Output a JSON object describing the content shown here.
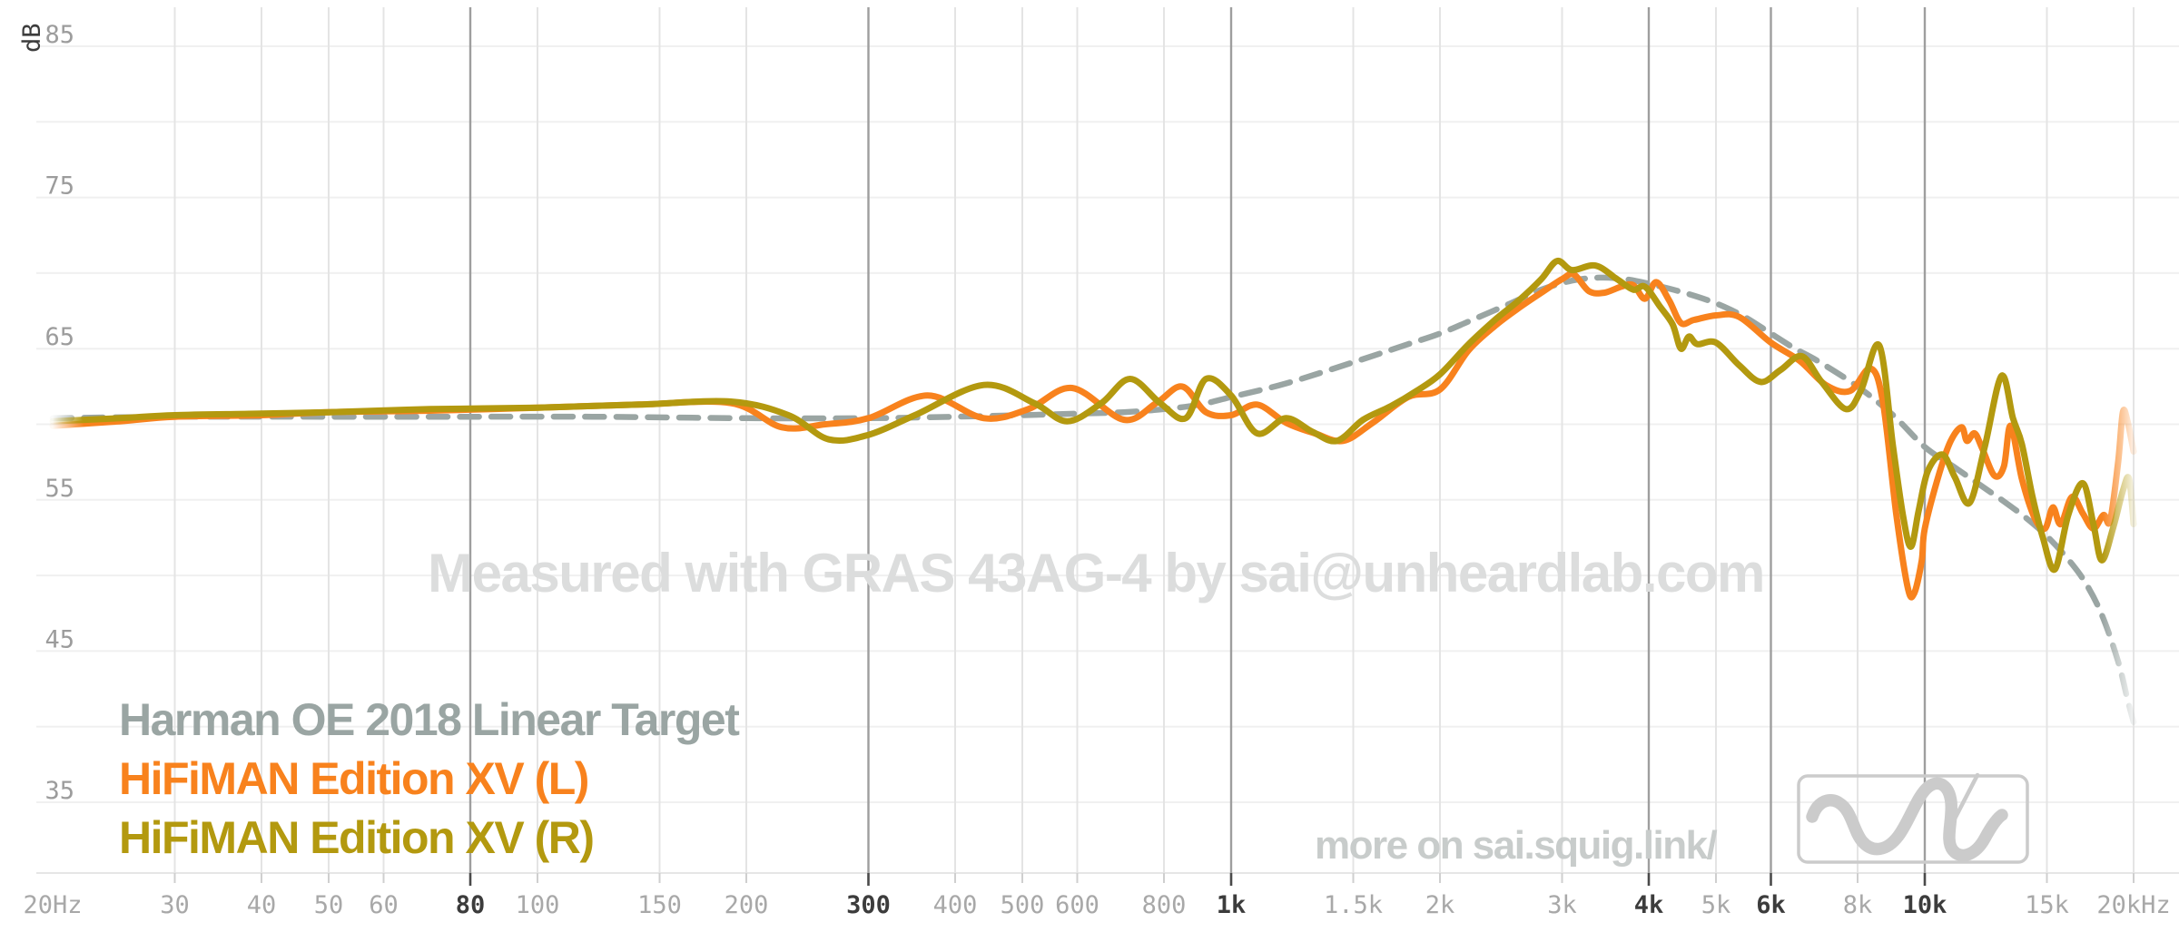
{
  "watermark": "Measured with GRAS 43AG-4 by sai@unheardlab.com",
  "footer": {
    "link_text": "more on sai.squig.link/"
  },
  "legend": {
    "items": [
      {
        "label": "Harman OE 2018 Linear Target",
        "color": "#9aa5a3"
      },
      {
        "label": "HiFiMAN Edition XV (L)",
        "color": "#f8821d"
      },
      {
        "label": "HiFiMAN Edition XV (R)",
        "color": "#b3990f"
      }
    ]
  },
  "axis": {
    "y_unit_label": "dB",
    "y_labels": [
      85,
      75,
      65,
      55,
      45,
      35
    ],
    "y_gridlines_db": [
      85,
      80,
      75,
      70,
      65,
      60,
      55,
      50,
      45,
      40,
      35
    ],
    "x_ticks": [
      {
        "label": "20Hz",
        "f": 20,
        "strong": false
      },
      {
        "label": "30",
        "f": 30,
        "strong": false
      },
      {
        "label": "40",
        "f": 40,
        "strong": false
      },
      {
        "label": "50",
        "f": 50,
        "strong": false
      },
      {
        "label": "60",
        "f": 60,
        "strong": false
      },
      {
        "label": "80",
        "f": 80,
        "strong": true
      },
      {
        "label": "100",
        "f": 100,
        "strong": false
      },
      {
        "label": "150",
        "f": 150,
        "strong": false
      },
      {
        "label": "200",
        "f": 200,
        "strong": false
      },
      {
        "label": "300",
        "f": 300,
        "strong": true
      },
      {
        "label": "400",
        "f": 400,
        "strong": false
      },
      {
        "label": "500",
        "f": 500,
        "strong": false
      },
      {
        "label": "600",
        "f": 600,
        "strong": false
      },
      {
        "label": "800",
        "f": 800,
        "strong": false
      },
      {
        "label": "1k",
        "f": 1000,
        "strong": true
      },
      {
        "label": "1.5k",
        "f": 1500,
        "strong": false
      },
      {
        "label": "2k",
        "f": 2000,
        "strong": false
      },
      {
        "label": "3k",
        "f": 3000,
        "strong": false
      },
      {
        "label": "4k",
        "f": 4000,
        "strong": true
      },
      {
        "label": "5k",
        "f": 5000,
        "strong": false
      },
      {
        "label": "6k",
        "f": 6000,
        "strong": true
      },
      {
        "label": "8k",
        "f": 8000,
        "strong": false
      },
      {
        "label": "10k",
        "f": 10000,
        "strong": true
      },
      {
        "label": "15k",
        "f": 15000,
        "strong": false
      },
      {
        "label": "20kHz",
        "f": 20000,
        "strong": false
      }
    ]
  },
  "colors": {
    "grid_light_v": "#e4e4e4",
    "grid_strong_v": "#9e9e9e",
    "grid_h": "#f0f0f0",
    "axis_line": "#e6e6e6",
    "tick_light": "#cfcfcf",
    "tick_strong": "#4a4a4a",
    "xlabel_light": "#a8a8a8",
    "xlabel_strong": "#3c3c3c",
    "ylabel": "#9c9c9c",
    "y_unit": "#3c3c3c",
    "watermark": "#dcdddd",
    "footer_text": "#c8cccb",
    "logo_gray": "#cbcbcb"
  },
  "chart_data": {
    "type": "line",
    "x_scale": "log",
    "x_range_hz": [
      20,
      20000
    ],
    "y_range_db": [
      30,
      88
    ],
    "xlabel": "frequency (Hz)",
    "ylabel": "dB",
    "grid": true,
    "legend_position": "bottom-left",
    "strong_gridlines_hz": [
      80,
      300,
      1000,
      4000,
      6000,
      10000
    ],
    "series": [
      {
        "name": "Harman OE 2018 Linear Target",
        "color": "#9aa5a3",
        "style": "dashed",
        "points": [
          [
            20,
            60.4
          ],
          [
            30,
            60.5
          ],
          [
            50,
            60.5
          ],
          [
            80,
            60.5
          ],
          [
            120,
            60.5
          ],
          [
            200,
            60.4
          ],
          [
            300,
            60.4
          ],
          [
            400,
            60.5
          ],
          [
            500,
            60.6
          ],
          [
            600,
            60.7
          ],
          [
            700,
            60.8
          ],
          [
            800,
            61.0
          ],
          [
            900,
            61.3
          ],
          [
            1000,
            61.8
          ],
          [
            1200,
            62.7
          ],
          [
            1500,
            64.1
          ],
          [
            1800,
            65.3
          ],
          [
            2000,
            66.0
          ],
          [
            2200,
            66.8
          ],
          [
            2500,
            67.9
          ],
          [
            2800,
            68.9
          ],
          [
            3100,
            69.5
          ],
          [
            3400,
            69.7
          ],
          [
            3700,
            69.6
          ],
          [
            4000,
            69.3
          ],
          [
            4500,
            68.7
          ],
          [
            5000,
            68.0
          ],
          [
            5500,
            67.1
          ],
          [
            6000,
            66.0
          ],
          [
            6500,
            65.0
          ],
          [
            7000,
            64.2
          ],
          [
            8000,
            62.5
          ],
          [
            9000,
            60.6
          ],
          [
            10000,
            58.5
          ],
          [
            11000,
            57.2
          ],
          [
            12000,
            56.0
          ],
          [
            13000,
            54.9
          ],
          [
            14000,
            53.8
          ],
          [
            15000,
            52.6
          ],
          [
            16000,
            51.2
          ],
          [
            17000,
            49.6
          ],
          [
            18000,
            47.4
          ],
          [
            19000,
            44.3
          ],
          [
            19600,
            41.8
          ],
          [
            20000,
            40.3
          ]
        ]
      },
      {
        "name": "HiFiMAN Edition XV (L)",
        "color": "#f8821d",
        "style": "solid",
        "points": [
          [
            20,
            59.9
          ],
          [
            25,
            60.2
          ],
          [
            30,
            60.5
          ],
          [
            40,
            60.6
          ],
          [
            50,
            60.8
          ],
          [
            70,
            60.9
          ],
          [
            100,
            61.1
          ],
          [
            140,
            61.3
          ],
          [
            190,
            61.4
          ],
          [
            225,
            59.8
          ],
          [
            260,
            60.0
          ],
          [
            300,
            60.4
          ],
          [
            365,
            61.9
          ],
          [
            440,
            60.4
          ],
          [
            510,
            61.0
          ],
          [
            590,
            62.4
          ],
          [
            700,
            60.3
          ],
          [
            780,
            61.4
          ],
          [
            850,
            62.5
          ],
          [
            920,
            60.8
          ],
          [
            1000,
            60.6
          ],
          [
            1090,
            61.3
          ],
          [
            1200,
            60.1
          ],
          [
            1320,
            59.4
          ],
          [
            1450,
            58.9
          ],
          [
            1600,
            60.1
          ],
          [
            1800,
            61.8
          ],
          [
            2000,
            62.3
          ],
          [
            2200,
            64.9
          ],
          [
            2400,
            66.5
          ],
          [
            2600,
            67.7
          ],
          [
            2800,
            68.7
          ],
          [
            3000,
            69.6
          ],
          [
            3120,
            69.9
          ],
          [
            3280,
            68.8
          ],
          [
            3450,
            68.7
          ],
          [
            3650,
            69.1
          ],
          [
            3800,
            69.2
          ],
          [
            3950,
            68.3
          ],
          [
            4100,
            69.4
          ],
          [
            4280,
            68.2
          ],
          [
            4450,
            66.7
          ],
          [
            4650,
            66.9
          ],
          [
            5000,
            67.2
          ],
          [
            5400,
            67.1
          ],
          [
            6000,
            65.4
          ],
          [
            6600,
            64.2
          ],
          [
            7200,
            62.6
          ],
          [
            7800,
            62.2
          ],
          [
            8350,
            63.7
          ],
          [
            8700,
            61.5
          ],
          [
            9100,
            54.0
          ],
          [
            9450,
            49.2
          ],
          [
            9650,
            48.8
          ],
          [
            9900,
            51.0
          ],
          [
            10000,
            53.1
          ],
          [
            10500,
            56.8
          ],
          [
            10900,
            58.9
          ],
          [
            11300,
            59.8
          ],
          [
            11500,
            58.9
          ],
          [
            11800,
            59.4
          ],
          [
            12100,
            58.4
          ],
          [
            12600,
            56.6
          ],
          [
            13000,
            57.2
          ],
          [
            13300,
            59.9
          ],
          [
            13800,
            56.4
          ],
          [
            14400,
            53.8
          ],
          [
            14900,
            53.1
          ],
          [
            15300,
            54.5
          ],
          [
            15700,
            53.4
          ],
          [
            16300,
            55.2
          ],
          [
            16900,
            54.1
          ],
          [
            17500,
            53.1
          ],
          [
            18100,
            54.0
          ],
          [
            18500,
            53.6
          ],
          [
            19000,
            57.5
          ],
          [
            19300,
            60.8
          ],
          [
            19600,
            60.2
          ],
          [
            20000,
            58.2
          ]
        ]
      },
      {
        "name": "HiFiMAN Edition XV (R)",
        "color": "#b3990f",
        "style": "solid",
        "points": [
          [
            20,
            60.2
          ],
          [
            25,
            60.4
          ],
          [
            30,
            60.6
          ],
          [
            40,
            60.7
          ],
          [
            50,
            60.8
          ],
          [
            70,
            61.0
          ],
          [
            100,
            61.1
          ],
          [
            140,
            61.3
          ],
          [
            190,
            61.5
          ],
          [
            230,
            60.6
          ],
          [
            263,
            59.0
          ],
          [
            300,
            59.3
          ],
          [
            350,
            60.6
          ],
          [
            440,
            62.6
          ],
          [
            520,
            61.4
          ],
          [
            580,
            60.2
          ],
          [
            650,
            61.4
          ],
          [
            715,
            63.0
          ],
          [
            790,
            61.4
          ],
          [
            860,
            60.4
          ],
          [
            920,
            63.0
          ],
          [
            1000,
            61.9
          ],
          [
            1090,
            59.4
          ],
          [
            1200,
            60.4
          ],
          [
            1310,
            59.5
          ],
          [
            1420,
            58.9
          ],
          [
            1550,
            60.3
          ],
          [
            1700,
            61.2
          ],
          [
            1850,
            62.2
          ],
          [
            2000,
            63.3
          ],
          [
            2200,
            65.3
          ],
          [
            2400,
            66.9
          ],
          [
            2600,
            68.2
          ],
          [
            2800,
            69.6
          ],
          [
            2950,
            70.8
          ],
          [
            3100,
            70.2
          ],
          [
            3350,
            70.5
          ],
          [
            3600,
            69.6
          ],
          [
            3800,
            68.9
          ],
          [
            3950,
            69.1
          ],
          [
            4150,
            67.8
          ],
          [
            4330,
            66.6
          ],
          [
            4450,
            65.0
          ],
          [
            4570,
            65.8
          ],
          [
            4700,
            65.3
          ],
          [
            5000,
            65.4
          ],
          [
            5400,
            63.9
          ],
          [
            5800,
            62.8
          ],
          [
            6200,
            63.6
          ],
          [
            6650,
            64.5
          ],
          [
            7100,
            62.8
          ],
          [
            7700,
            61.0
          ],
          [
            8100,
            62.3
          ],
          [
            8600,
            65.2
          ],
          [
            9000,
            58.5
          ],
          [
            9300,
            54.0
          ],
          [
            9550,
            51.9
          ],
          [
            9800,
            54.3
          ],
          [
            10100,
            56.9
          ],
          [
            10600,
            58.0
          ],
          [
            11050,
            56.5
          ],
          [
            11600,
            54.8
          ],
          [
            12200,
            58.5
          ],
          [
            12900,
            63.2
          ],
          [
            13400,
            60.4
          ],
          [
            13800,
            58.7
          ],
          [
            14300,
            55.2
          ],
          [
            14800,
            52.5
          ],
          [
            15400,
            50.4
          ],
          [
            16100,
            54.0
          ],
          [
            16900,
            56.1
          ],
          [
            17500,
            53.4
          ],
          [
            18000,
            51.0
          ],
          [
            18700,
            53.2
          ],
          [
            19300,
            55.6
          ],
          [
            19700,
            56.4
          ],
          [
            20000,
            53.4
          ]
        ]
      }
    ]
  }
}
